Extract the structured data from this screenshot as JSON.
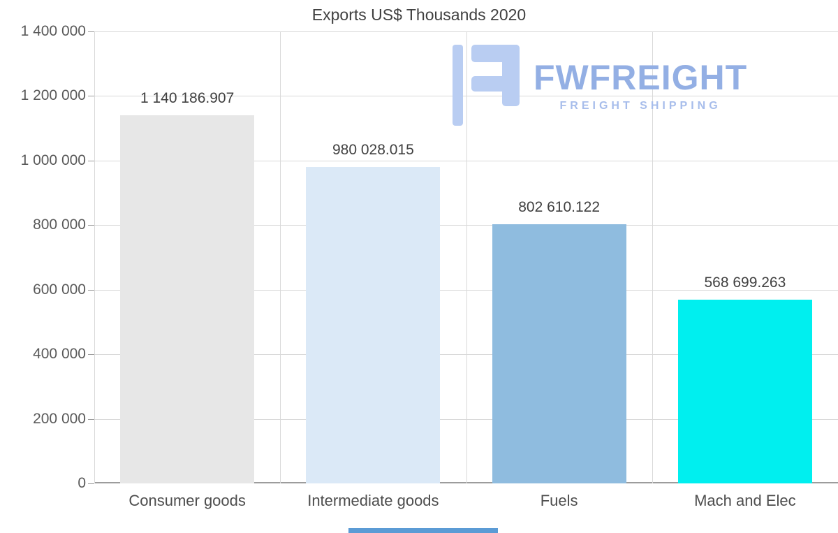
{
  "title": "Exports US$ Thousands 2020",
  "chart_data": {
    "type": "bar",
    "title": "Exports US$ Thousands 2020",
    "categories": [
      "Consumer goods",
      "Intermediate goods",
      "Fuels",
      "Mach and Elec"
    ],
    "values": [
      1140186.907,
      980028.015,
      802610.122,
      568699.263
    ],
    "value_labels": [
      "1 140 186.907",
      "980 028.015",
      "802 610.122",
      "568 699.263"
    ],
    "bar_colors": [
      "#e7e7e7",
      "#dbe9f7",
      "#8fbcdf",
      "#00efef"
    ],
    "xlabel": "",
    "ylabel": "",
    "ylim": [
      0,
      1400000
    ],
    "ytick_step": 200000,
    "ytick_labels": [
      "0",
      "200 000",
      "400 000",
      "600 000",
      "800 000",
      "1 000 000",
      "1 200 000",
      "1 400 000"
    ],
    "grid": true,
    "legend": false
  },
  "watermark": {
    "brand": "FWFREIGHT",
    "tagline": "FREIGHT SHIPPING",
    "brand_color": "#93afe4",
    "tagline_color": "#a7bdeb",
    "icon_color": "#b9cdf2"
  },
  "colors": {
    "background": "#ffffff",
    "grid": "#d9d9d9",
    "axis": "#9c9c9c",
    "title_text": "#404040",
    "tick_text": "#595959",
    "bar_label_text": "#404040"
  }
}
